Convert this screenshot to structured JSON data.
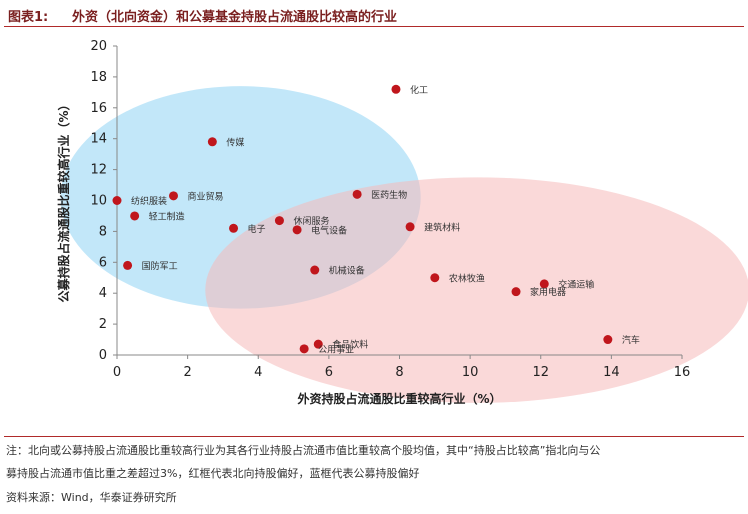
{
  "header": {
    "figure_label": "图表1:",
    "figure_title": "外资（北向资金）和公募基金持股占流通股比较高的行业"
  },
  "chart_data": {
    "type": "scatter",
    "xlabel": "外资持股占流通股比重较高行业（%）",
    "ylabel": "公募持股占流通股比重较高行业（%）",
    "xlim": [
      0,
      16
    ],
    "ylim": [
      0,
      20
    ],
    "xticks": [
      0,
      2,
      4,
      6,
      8,
      10,
      12,
      14,
      16
    ],
    "yticks": [
      0,
      2,
      4,
      6,
      8,
      10,
      12,
      14,
      16,
      18,
      20
    ],
    "grid": false,
    "point_color": "#c0161c",
    "regions": [
      {
        "shape": "ellipse",
        "cx": 3.5,
        "cy": 10.2,
        "rx": 5.1,
        "ry": 7.2,
        "color": "#8fd3f4"
      },
      {
        "shape": "ellipse",
        "cx": 10.2,
        "cy": 4.2,
        "rx": 7.7,
        "ry": 7.3,
        "color": "#f6b9b9"
      }
    ],
    "points": [
      {
        "label": "化工",
        "x": 7.9,
        "y": 17.2
      },
      {
        "label": "传媒",
        "x": 2.7,
        "y": 13.8
      },
      {
        "label": "纺织服装",
        "x": 0.0,
        "y": 10.0
      },
      {
        "label": "商业贸易",
        "x": 1.6,
        "y": 10.3
      },
      {
        "label": "医药生物",
        "x": 6.8,
        "y": 10.4
      },
      {
        "label": "轻工制造",
        "x": 0.5,
        "y": 9.0
      },
      {
        "label": "休闲服务",
        "x": 4.6,
        "y": 8.7
      },
      {
        "label": "电子",
        "x": 3.3,
        "y": 8.2
      },
      {
        "label": "电气设备",
        "x": 5.1,
        "y": 8.1
      },
      {
        "label": "建筑材料",
        "x": 8.3,
        "y": 8.3
      },
      {
        "label": "国防军工",
        "x": 0.3,
        "y": 5.8
      },
      {
        "label": "机械设备",
        "x": 5.6,
        "y": 5.5
      },
      {
        "label": "农林牧渔",
        "x": 9.0,
        "y": 5.0
      },
      {
        "label": "交通运输",
        "x": 12.1,
        "y": 4.6
      },
      {
        "label": "家用电器",
        "x": 11.3,
        "y": 4.1
      },
      {
        "label": "汽车",
        "x": 13.9,
        "y": 1.0
      },
      {
        "label": "公用事业",
        "x": 5.3,
        "y": 0.4
      },
      {
        "label": "食品饮料",
        "x": 5.7,
        "y": 0.7
      }
    ]
  },
  "notes": {
    "line1": "注：北向或公募持股占流通股比重较高行业为其各行业持股占流通市值比重较高个股均值，其中“持股占比较高”指北向与公",
    "line2": "募持股占流通市值比重之差超过3%，红框代表北向持股偏好，蓝框代表公募持股偏好",
    "source": "资料来源：Wind，华泰证券研究所"
  }
}
